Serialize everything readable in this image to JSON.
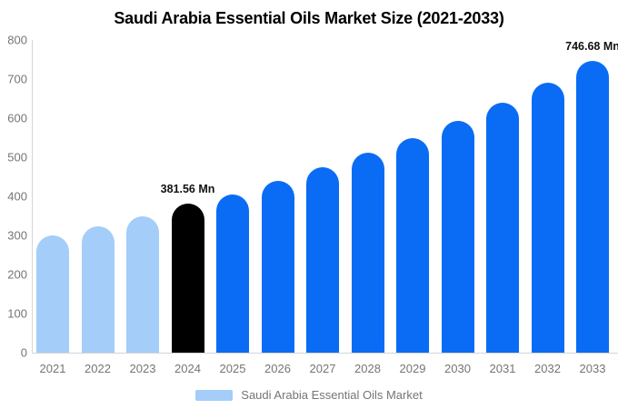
{
  "title": "Saudi Arabia Essential Oils Market Size (2021-2033)",
  "chart_data": {
    "type": "bar",
    "title": "Saudi Arabia Essential Oils Market Size (2021-2033)",
    "categories": [
      "2021",
      "2022",
      "2023",
      "2024",
      "2025",
      "2026",
      "2027",
      "2028",
      "2029",
      "2030",
      "2031",
      "2032",
      "2033"
    ],
    "series": [
      {
        "name": "Saudi Arabia Essential Oils Market",
        "values": [
          299,
          324,
          349,
          381.56,
          405,
          439,
          474,
          512,
          549,
          593,
          640,
          691,
          746.68
        ]
      }
    ],
    "unit": "Mn",
    "ylim": [
      0,
      800
    ],
    "yticks": [
      0,
      100,
      200,
      300,
      400,
      500,
      600,
      700,
      800
    ],
    "grid": false,
    "legend_position": "bottom",
    "bar_colors": [
      "#A4CDF9",
      "#A4CDF9",
      "#A4CDF9",
      "#000000",
      "#0A6CF5",
      "#0A6CF5",
      "#0A6CF5",
      "#0A6CF5",
      "#0A6CF5",
      "#0A6CF5",
      "#0A6CF5",
      "#0A6CF5",
      "#0A6CF5"
    ],
    "palette": {
      "historical": "#A4CDF9",
      "highlight": "#000000",
      "forecast": "#0A6CF5"
    },
    "annotations": [
      {
        "category": "2024",
        "text": "381.56 Mn"
      },
      {
        "category": "2033",
        "text": "746.68 Mn"
      }
    ],
    "axis_color": "#D6D6D6",
    "tick_label_color": "#757575"
  },
  "legend": {
    "label": "Saudi Arabia Essential Oils Market",
    "swatch_color": "#A4CDF9"
  }
}
